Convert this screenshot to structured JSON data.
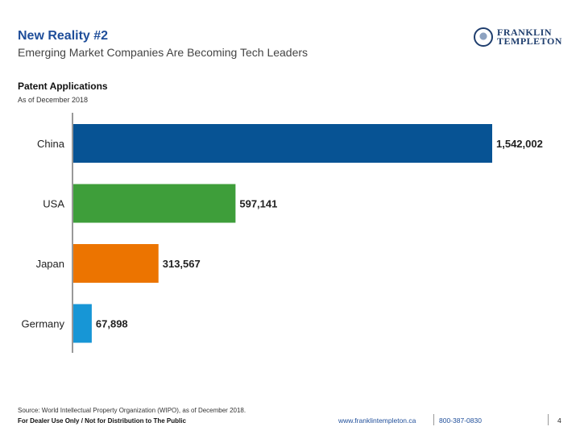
{
  "header": {
    "title": "New Reality #2",
    "subtitle": "Emerging Market Companies Are Becoming Tech Leaders"
  },
  "logo": {
    "line1": "FRANKLIN",
    "line2": "TEMPLETON"
  },
  "chart_data": {
    "type": "bar",
    "orientation": "horizontal",
    "title": "Patent Applications",
    "subtitle": "As of December 2018",
    "categories": [
      "China",
      "USA",
      "Japan",
      "Germany"
    ],
    "values": [
      1542002,
      597141,
      313567,
      67898
    ],
    "value_labels": [
      "1,542,002",
      "597,141",
      "313,567",
      "67,898"
    ],
    "colors": [
      "#075394",
      "#3e9e3a",
      "#ec7400",
      "#1796d6"
    ],
    "xlim": [
      0,
      1542002
    ],
    "xlabel": "",
    "ylabel": "",
    "grid": false
  },
  "footer": {
    "source": "Source: World Intellectual Property Organization (WIPO), as of December 2018.",
    "disclaimer": "For Dealer Use Only / Not for Distribution to The Public",
    "website": "www.franklintempleton.ca",
    "phone": "800-387-0830",
    "page": "4"
  }
}
